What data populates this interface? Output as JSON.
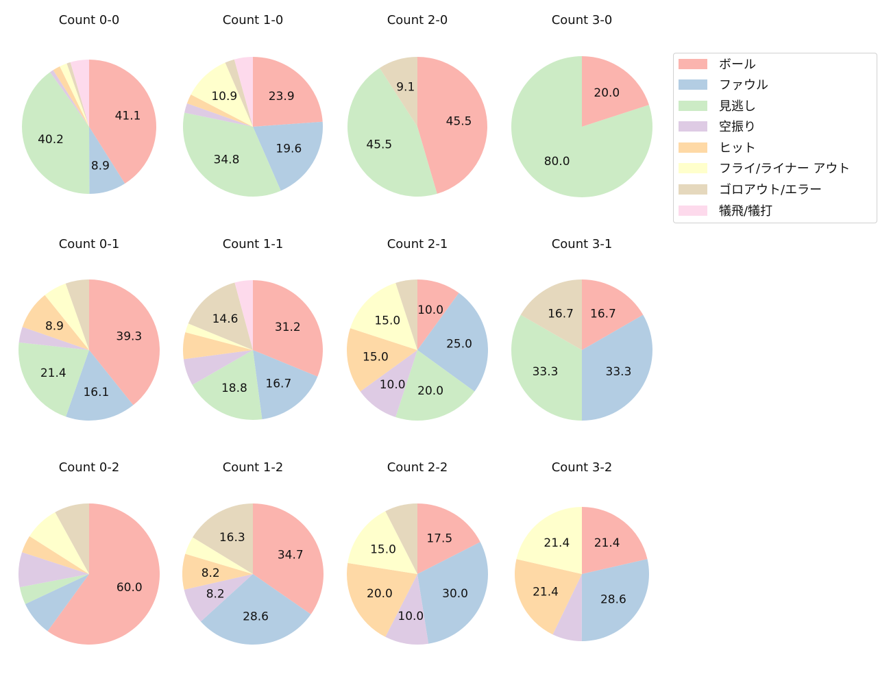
{
  "chart_data": {
    "type": "pie",
    "categories": [
      "ボール",
      "ファウル",
      "見逃し",
      "空振り",
      "ヒット",
      "フライ/ライナー アウト",
      "ゴロアウト/エラー",
      "犠飛/犠打"
    ],
    "colors": [
      "#fbb4ae",
      "#b3cde3",
      "#ccebc5",
      "#decbe4",
      "#fed9a6",
      "#ffffcc",
      "#e5d8bd",
      "#fddaec"
    ],
    "legend_position": "right",
    "charts": [
      {
        "title": "Count 0-0",
        "values": [
          41.1,
          8.9,
          40.2,
          0.9,
          1.8,
          1.8,
          0.9,
          4.5
        ]
      },
      {
        "title": "Count 1-0",
        "values": [
          23.9,
          19.6,
          34.8,
          2.2,
          2.2,
          10.9,
          2.2,
          4.3
        ]
      },
      {
        "title": "Count 2-0",
        "values": [
          45.5,
          0,
          45.5,
          0,
          0,
          0,
          9.1,
          0
        ]
      },
      {
        "title": "Count 3-0",
        "values": [
          20.0,
          0,
          80.0,
          0,
          0,
          0,
          0,
          0
        ]
      },
      {
        "title": "Count 0-1",
        "values": [
          39.3,
          16.1,
          21.4,
          3.6,
          8.9,
          5.4,
          5.4,
          0
        ]
      },
      {
        "title": "Count 1-1",
        "values": [
          31.2,
          16.7,
          18.8,
          6.2,
          6.2,
          2.1,
          14.6,
          4.2
        ]
      },
      {
        "title": "Count 2-1",
        "values": [
          10.0,
          25.0,
          20.0,
          10.0,
          15.0,
          15.0,
          5.0,
          0
        ]
      },
      {
        "title": "Count 3-1",
        "values": [
          16.7,
          33.3,
          33.3,
          0,
          0,
          0,
          16.7,
          0
        ]
      },
      {
        "title": "Count 0-2",
        "values": [
          60.0,
          8.0,
          4.0,
          8.0,
          4.0,
          8.0,
          8.0,
          0
        ]
      },
      {
        "title": "Count 1-2",
        "values": [
          34.7,
          28.6,
          0,
          8.2,
          8.2,
          4.1,
          16.3,
          0
        ]
      },
      {
        "title": "Count 2-2",
        "values": [
          17.5,
          30.0,
          0,
          10.0,
          20.0,
          15.0,
          7.5,
          0
        ]
      },
      {
        "title": "Count 3-2",
        "values": [
          21.4,
          28.6,
          0,
          7.1,
          21.4,
          21.4,
          0,
          0
        ]
      }
    ]
  }
}
